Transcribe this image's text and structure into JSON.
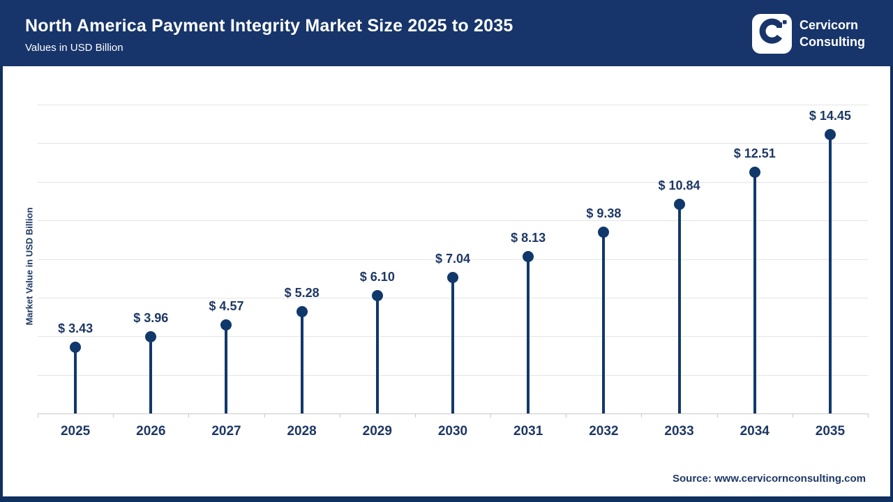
{
  "header": {
    "title": "North America Payment Integrity Market Size 2025 to 2035",
    "subtitle": "Values in USD Billion",
    "brand": {
      "line1": "Cervicorn",
      "line2": "Consulting"
    }
  },
  "chart_data": {
    "type": "scatter",
    "variant": "lollipop-stem",
    "title": "North America Payment Integrity Market Size 2025 to 2035",
    "categories": [
      "2025",
      "2026",
      "2027",
      "2028",
      "2029",
      "2030",
      "2031",
      "2032",
      "2033",
      "2034",
      "2035"
    ],
    "values": [
      3.43,
      3.96,
      4.57,
      5.28,
      6.1,
      7.04,
      8.13,
      9.38,
      10.84,
      12.51,
      14.45
    ],
    "value_labels": [
      "$ 3.43",
      "$ 3.96",
      "$ 4.57",
      "$ 5.28",
      "$ 6.10",
      "$ 7.04",
      "$ 8.13",
      "$ 9.38",
      "$ 10.84",
      "$ 12.51",
      "$ 14.45"
    ],
    "xlabel": "",
    "ylabel": "Market Value in USD Billion",
    "ylim": [
      0,
      16
    ],
    "gridline_step": 2,
    "grid": "horizontal",
    "legend": "none"
  },
  "footer": {
    "source": "Source: www.cervicornconsulting.com"
  },
  "colors": {
    "header_bg": "#17356a",
    "frame_border": "#10305f",
    "accent_navy": "#11386b",
    "label_navy": "#1e3865",
    "gridline": "#e4e4e4",
    "axis": "#c8c8c8",
    "background": "#ffffff"
  }
}
